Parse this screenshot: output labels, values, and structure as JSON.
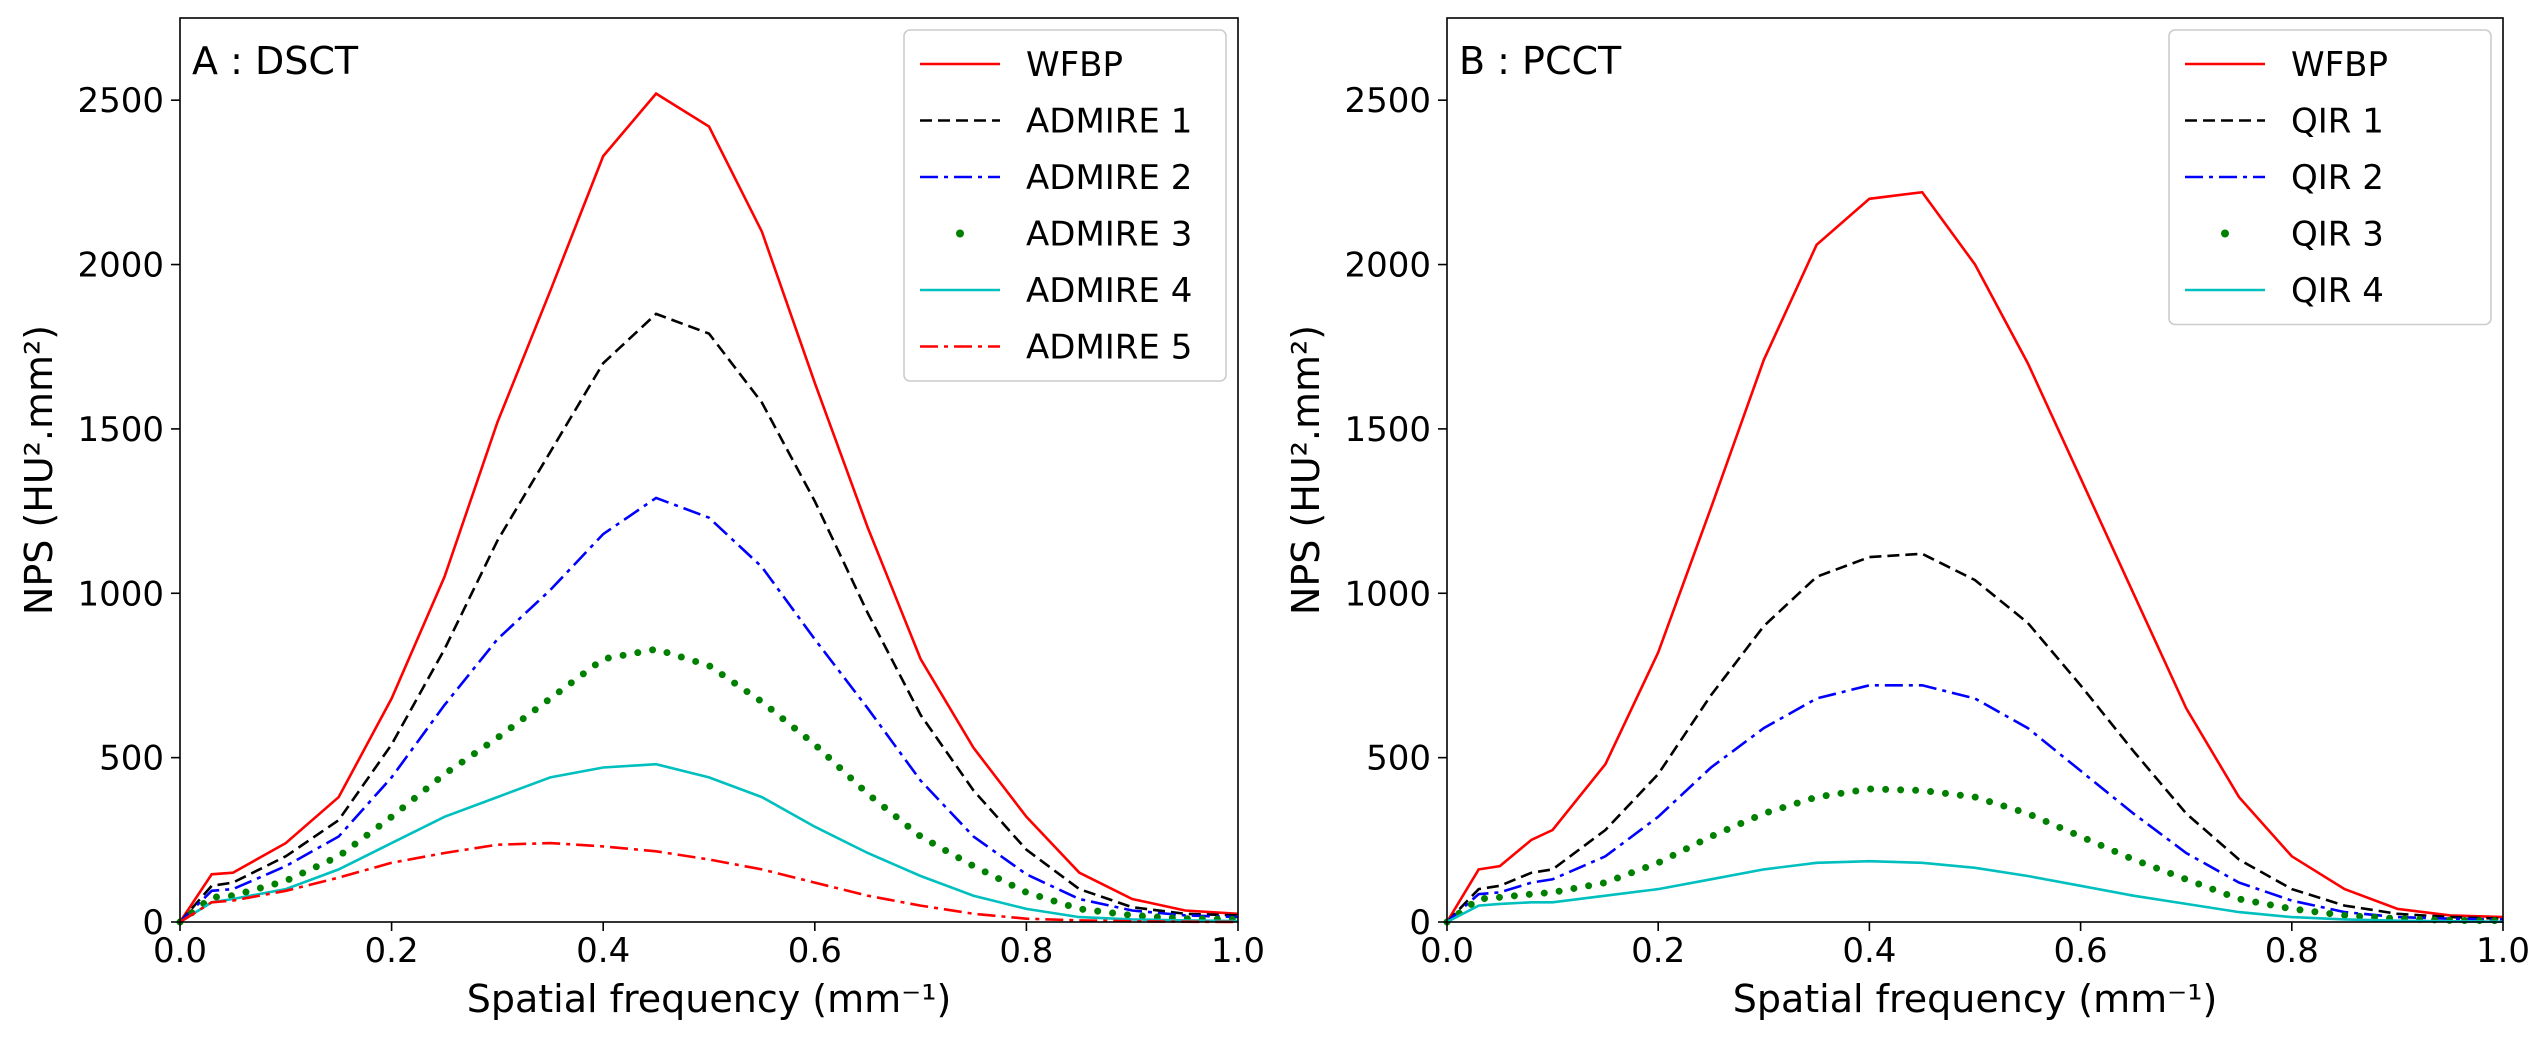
{
  "chart_data": [
    {
      "type": "line",
      "title": "A : DSCT",
      "xlabel": "Spatial frequency (mm⁻¹)",
      "ylabel": "NPS (HU².mm²)",
      "xlim": [
        0.0,
        1.0
      ],
      "ylim": [
        0,
        2750
      ],
      "xticks": [
        0.0,
        0.2,
        0.4,
        0.6,
        0.8,
        1.0
      ],
      "xtick_labels": [
        "0.0",
        "0.2",
        "0.4",
        "0.6",
        "0.8",
        "1.0"
      ],
      "yticks": [
        0,
        500,
        1000,
        1500,
        2000,
        2500
      ],
      "ytick_labels": [
        "0",
        "500",
        "1000",
        "1500",
        "2000",
        "2500"
      ],
      "legend_position": "top-right",
      "x": [
        0.0,
        0.03,
        0.05,
        0.1,
        0.15,
        0.2,
        0.25,
        0.3,
        0.35,
        0.4,
        0.45,
        0.5,
        0.55,
        0.6,
        0.65,
        0.7,
        0.75,
        0.8,
        0.85,
        0.9,
        0.95,
        1.0
      ],
      "series": [
        {
          "name": "WFBP",
          "color": "#ff0000",
          "style": "solid",
          "values": [
            0,
            145,
            150,
            240,
            380,
            680,
            1050,
            1520,
            1920,
            2330,
            2520,
            2420,
            2100,
            1640,
            1200,
            800,
            530,
            320,
            150,
            70,
            35,
            25
          ]
        },
        {
          "name": "ADMIRE 1",
          "color": "#000000",
          "style": "dashed",
          "values": [
            0,
            110,
            120,
            200,
            310,
            540,
            830,
            1160,
            1430,
            1700,
            1850,
            1790,
            1580,
            1280,
            940,
            630,
            400,
            220,
            100,
            45,
            25,
            20
          ]
        },
        {
          "name": "ADMIRE 2",
          "color": "#0000ff",
          "style": "dashdot",
          "values": [
            0,
            95,
            100,
            170,
            260,
            440,
            660,
            860,
            1010,
            1180,
            1290,
            1230,
            1080,
            860,
            650,
            430,
            260,
            145,
            70,
            35,
            20,
            15
          ]
        },
        {
          "name": "ADMIRE 3",
          "color": "#008000",
          "style": "dotted",
          "values": [
            0,
            75,
            80,
            125,
            200,
            320,
            450,
            560,
            680,
            800,
            830,
            780,
            670,
            540,
            390,
            260,
            170,
            90,
            40,
            20,
            10,
            8
          ]
        },
        {
          "name": "ADMIRE 4",
          "color": "#00bfbf",
          "style": "solid",
          "values": [
            0,
            60,
            70,
            100,
            160,
            240,
            320,
            380,
            440,
            470,
            480,
            440,
            380,
            290,
            210,
            140,
            80,
            40,
            15,
            8,
            5,
            3
          ]
        },
        {
          "name": "ADMIRE 5",
          "color": "#ff0000",
          "style": "dashdot",
          "values": [
            0,
            60,
            65,
            95,
            135,
            180,
            210,
            235,
            240,
            230,
            215,
            190,
            160,
            120,
            80,
            50,
            25,
            10,
            5,
            2,
            1,
            0
          ]
        }
      ]
    },
    {
      "type": "line",
      "title": "B : PCCT",
      "xlabel": "Spatial frequency (mm⁻¹)",
      "ylabel": "NPS (HU².mm²)",
      "xlim": [
        0.0,
        1.0
      ],
      "ylim": [
        0,
        2750
      ],
      "xticks": [
        0.0,
        0.2,
        0.4,
        0.6,
        0.8,
        1.0
      ],
      "xtick_labels": [
        "0.0",
        "0.2",
        "0.4",
        "0.6",
        "0.8",
        "1.0"
      ],
      "yticks": [
        0,
        500,
        1000,
        1500,
        2000,
        2500
      ],
      "ytick_labels": [
        "0",
        "500",
        "1000",
        "1500",
        "2000",
        "2500"
      ],
      "legend_position": "top-right",
      "x": [
        0.0,
        0.03,
        0.05,
        0.08,
        0.1,
        0.15,
        0.2,
        0.25,
        0.3,
        0.35,
        0.4,
        0.45,
        0.5,
        0.55,
        0.6,
        0.65,
        0.7,
        0.75,
        0.8,
        0.85,
        0.9,
        0.95,
        1.0
      ],
      "series": [
        {
          "name": "WFBP",
          "color": "#ff0000",
          "style": "solid",
          "values": [
            0,
            160,
            170,
            250,
            280,
            480,
            820,
            1260,
            1710,
            2060,
            2200,
            2220,
            2000,
            1700,
            1350,
            1000,
            650,
            380,
            200,
            100,
            40,
            20,
            15
          ]
        },
        {
          "name": "QIR 1",
          "color": "#000000",
          "style": "dashed",
          "values": [
            0,
            100,
            110,
            150,
            160,
            280,
            450,
            690,
            900,
            1050,
            1110,
            1120,
            1040,
            910,
            720,
            520,
            330,
            190,
            100,
            50,
            25,
            15,
            10
          ]
        },
        {
          "name": "QIR 2",
          "color": "#0000ff",
          "style": "dashdot",
          "values": [
            0,
            85,
            90,
            120,
            130,
            200,
            320,
            470,
            590,
            680,
            720,
            720,
            680,
            590,
            460,
            330,
            210,
            120,
            65,
            30,
            15,
            10,
            8
          ]
        },
        {
          "name": "QIR 3",
          "color": "#008000",
          "style": "dotted",
          "values": [
            0,
            70,
            75,
            85,
            90,
            120,
            180,
            260,
            330,
            380,
            405,
            400,
            380,
            330,
            260,
            190,
            130,
            70,
            40,
            20,
            10,
            5,
            4
          ]
        },
        {
          "name": "QIR 4",
          "color": "#00bfbf",
          "style": "solid",
          "values": [
            0,
            50,
            55,
            60,
            60,
            80,
            100,
            130,
            160,
            180,
            185,
            180,
            165,
            140,
            110,
            80,
            55,
            30,
            15,
            8,
            4,
            2,
            1
          ]
        }
      ]
    }
  ]
}
